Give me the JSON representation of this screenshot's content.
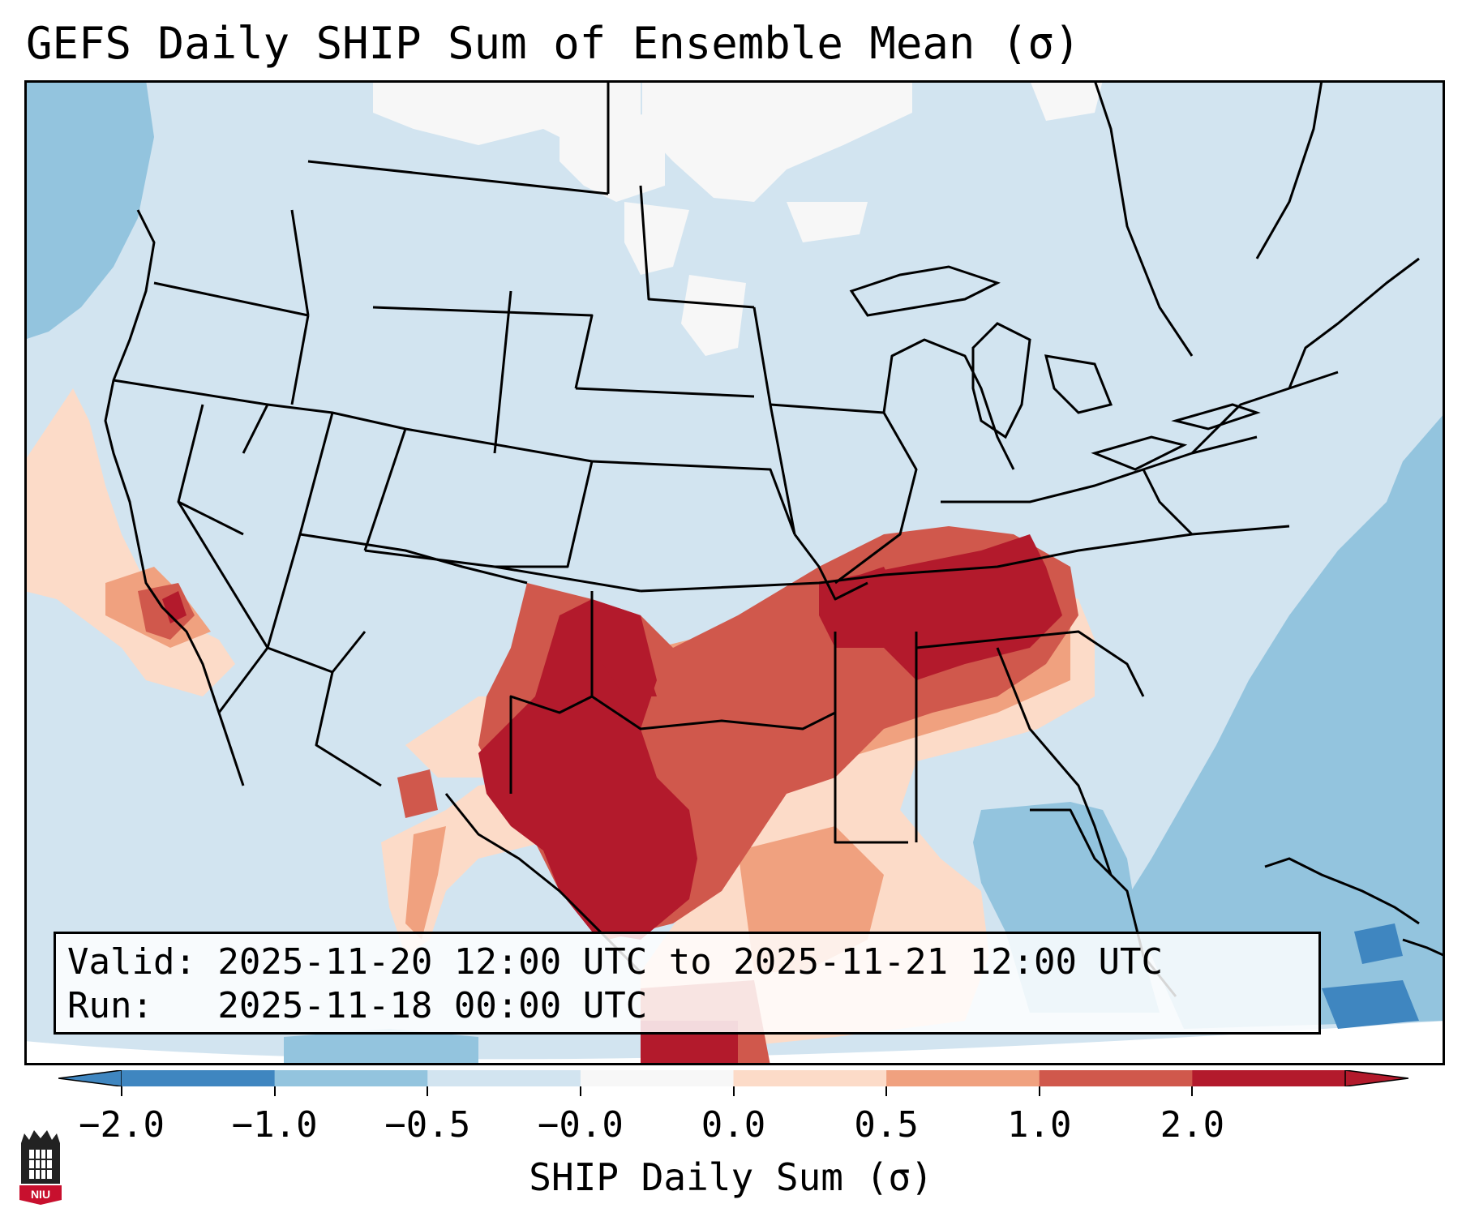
{
  "title": "GEFS Daily SHIP Sum of Ensemble Mean (σ)",
  "info": {
    "valid": "Valid: 2025-11-20 12:00 UTC to 2025-11-21 12:00 UTC",
    "run": "Run:   2025-11-18 00:00 UTC"
  },
  "colorbar": {
    "label": "SHIP Daily Sum (σ)",
    "ticks": [
      "−2.0",
      "−1.0",
      "−0.5",
      "−0.0",
      "0.0",
      "0.5",
      "1.0",
      "2.0"
    ],
    "colors": [
      "#3f86c0",
      "#93c4de",
      "#d2e4f0",
      "#f7f7f7",
      "#fcdbc8",
      "#f0a17f",
      "#d0584c",
      "#b31a2c"
    ]
  },
  "logo": {
    "text": "NIU",
    "color": "#c8102e"
  }
}
